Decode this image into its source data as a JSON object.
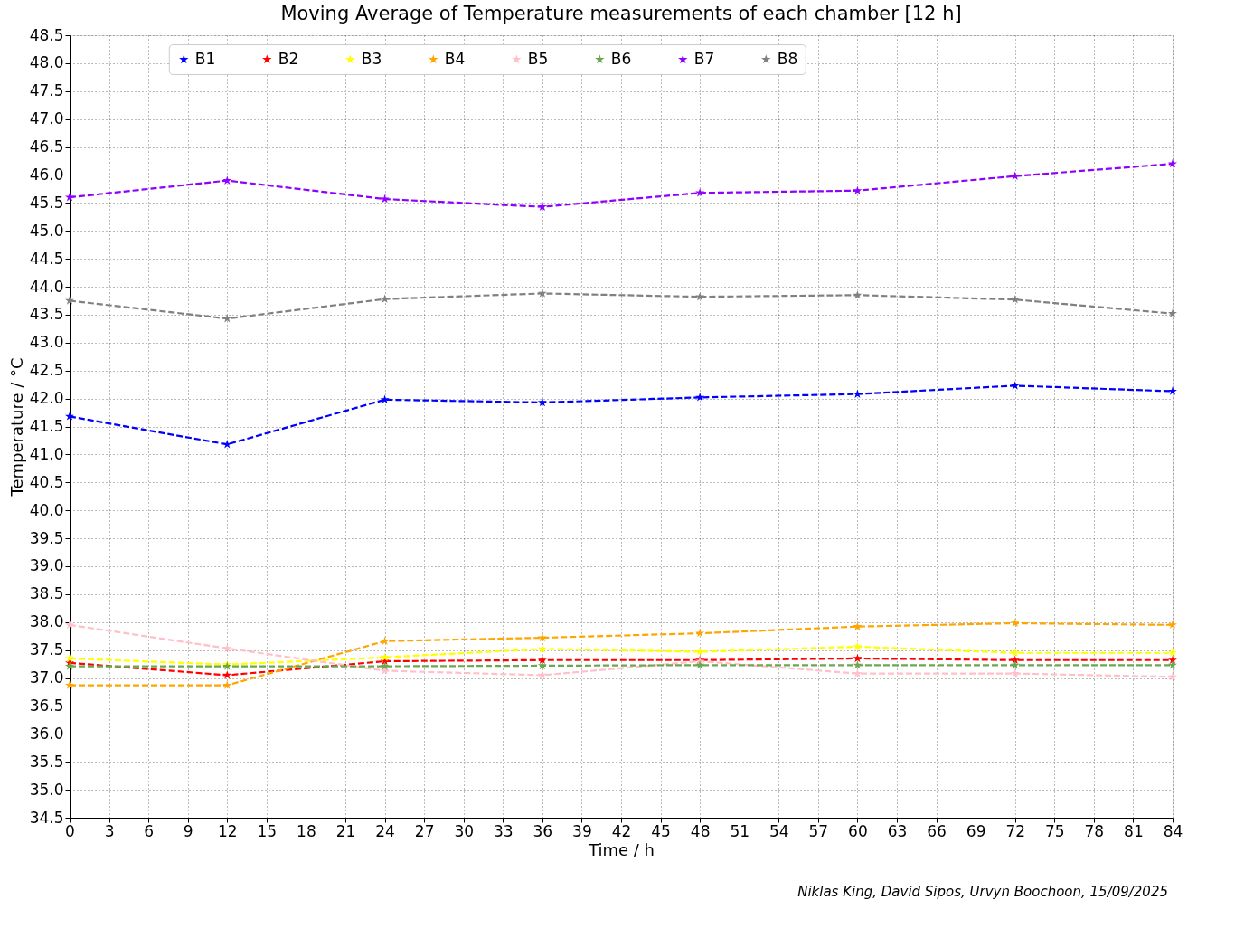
{
  "chart_data": {
    "type": "line",
    "title": "Moving Average of Temperature measurements of each chamber [12 h]",
    "xlabel": "Time / h",
    "ylabel": "Temperature / °C",
    "x": [
      0,
      12,
      24,
      36,
      48,
      60,
      72,
      84
    ],
    "series": [
      {
        "name": "B1",
        "color": "#0000ff",
        "values": [
          41.68,
          41.18,
          41.98,
          41.93,
          42.02,
          42.08,
          42.23,
          42.13
        ]
      },
      {
        "name": "B2",
        "color": "#ff0000",
        "values": [
          37.27,
          37.05,
          37.3,
          37.32,
          37.32,
          37.35,
          37.32,
          37.32
        ]
      },
      {
        "name": "B3",
        "color": "#ffff00",
        "values": [
          37.35,
          37.24,
          37.37,
          37.52,
          37.47,
          37.56,
          37.45,
          37.45
        ]
      },
      {
        "name": "B4",
        "color": "#ffa500",
        "values": [
          36.87,
          36.87,
          37.66,
          37.72,
          37.8,
          37.92,
          37.98,
          37.95
        ]
      },
      {
        "name": "B5",
        "color": "#ffc0cb",
        "values": [
          37.95,
          37.53,
          37.13,
          37.05,
          37.3,
          37.08,
          37.08,
          37.02
        ]
      },
      {
        "name": "B6",
        "color": "#6aa84f",
        "values": [
          37.21,
          37.21,
          37.21,
          37.22,
          37.23,
          37.23,
          37.23,
          37.23
        ]
      },
      {
        "name": "B7",
        "color": "#8f00ff",
        "values": [
          45.6,
          45.9,
          45.57,
          45.43,
          45.68,
          45.72,
          45.98,
          46.2
        ]
      },
      {
        "name": "B8",
        "color": "#808080",
        "values": [
          43.75,
          43.43,
          43.78,
          43.88,
          43.82,
          43.85,
          43.77,
          43.52
        ]
      }
    ],
    "xlim": [
      0,
      84
    ],
    "xticks": [
      0,
      3,
      6,
      9,
      12,
      15,
      18,
      21,
      24,
      27,
      30,
      33,
      36,
      39,
      42,
      45,
      48,
      51,
      54,
      57,
      60,
      63,
      66,
      69,
      72,
      75,
      78,
      81,
      84
    ],
    "ylim": [
      34.5,
      48.5
    ],
    "yticks": [
      34.5,
      {
        "value": 35,
        "label": "35.0"
      },
      35.5,
      {
        "value": 36,
        "label": "36.0"
      },
      36.5,
      {
        "value": 37,
        "label": "37.0"
      },
      37.5,
      {
        "value": 38,
        "label": "38.0"
      },
      38.5,
      {
        "value": 39,
        "label": "39.0"
      },
      39.5,
      {
        "value": 40,
        "label": "40.0"
      },
      40.5,
      {
        "value": 41,
        "label": "41.0"
      },
      41.5,
      {
        "value": 42,
        "label": "42.0"
      },
      42.5,
      {
        "value": 43,
        "label": "43.0"
      },
      43.5,
      {
        "value": 44,
        "label": "44.0"
      },
      44.5,
      {
        "value": 45,
        "label": "45.0"
      },
      45.5,
      {
        "value": 46,
        "label": "46.0"
      },
      46.5,
      {
        "value": 47,
        "label": "47.0"
      },
      47.5,
      {
        "value": 48,
        "label": "48.0"
      },
      48.5
    ],
    "grid": true,
    "legend": "top",
    "marker": "star",
    "line_style": "dashed",
    "annotations": [
      "Niklas King, David Sipos, Urvyn Boochoon, 15/09/2025"
    ]
  }
}
